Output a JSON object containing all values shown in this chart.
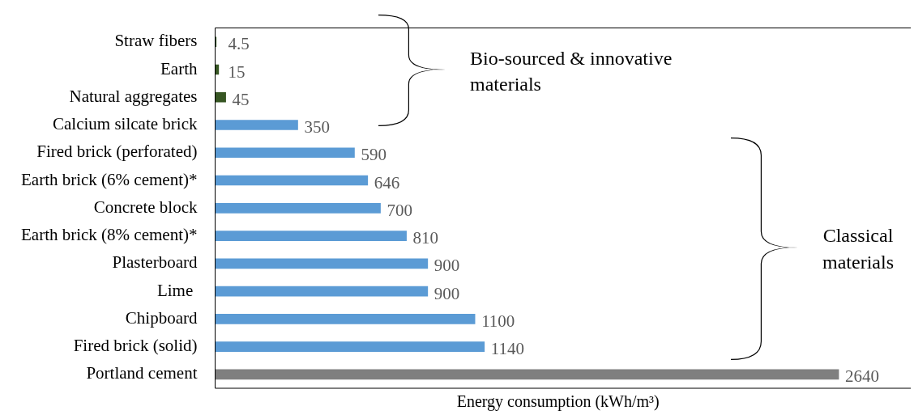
{
  "chart_data": {
    "type": "bar",
    "orientation": "horizontal",
    "xlabel": "Energy consumption (kWh/m³)",
    "categories": [
      "Straw fibers",
      "Earth",
      "Natural aggregates",
      "Calcium silcate brick",
      "Fired brick (perforated)",
      "Earth brick (6% cement)*",
      "Concrete block",
      "Earth brick (8% cement)*",
      "Plasterboard",
      "Lime ",
      "Chipboard",
      "Fired brick (solid)",
      "Portland cement"
    ],
    "values": [
      4.5,
      15,
      45,
      350,
      590,
      646,
      700,
      810,
      900,
      900,
      1100,
      1140,
      2640
    ],
    "colors": [
      "#375623",
      "#375623",
      "#375623",
      "#5b9bd5",
      "#5b9bd5",
      "#5b9bd5",
      "#5b9bd5",
      "#5b9bd5",
      "#5b9bd5",
      "#5b9bd5",
      "#5b9bd5",
      "#5b9bd5",
      "#7f7f7f"
    ],
    "data_labels": true,
    "grid": false,
    "legend": false,
    "annotations": [
      "Bio-sourced & innovative materials",
      "Classical materials"
    ]
  }
}
